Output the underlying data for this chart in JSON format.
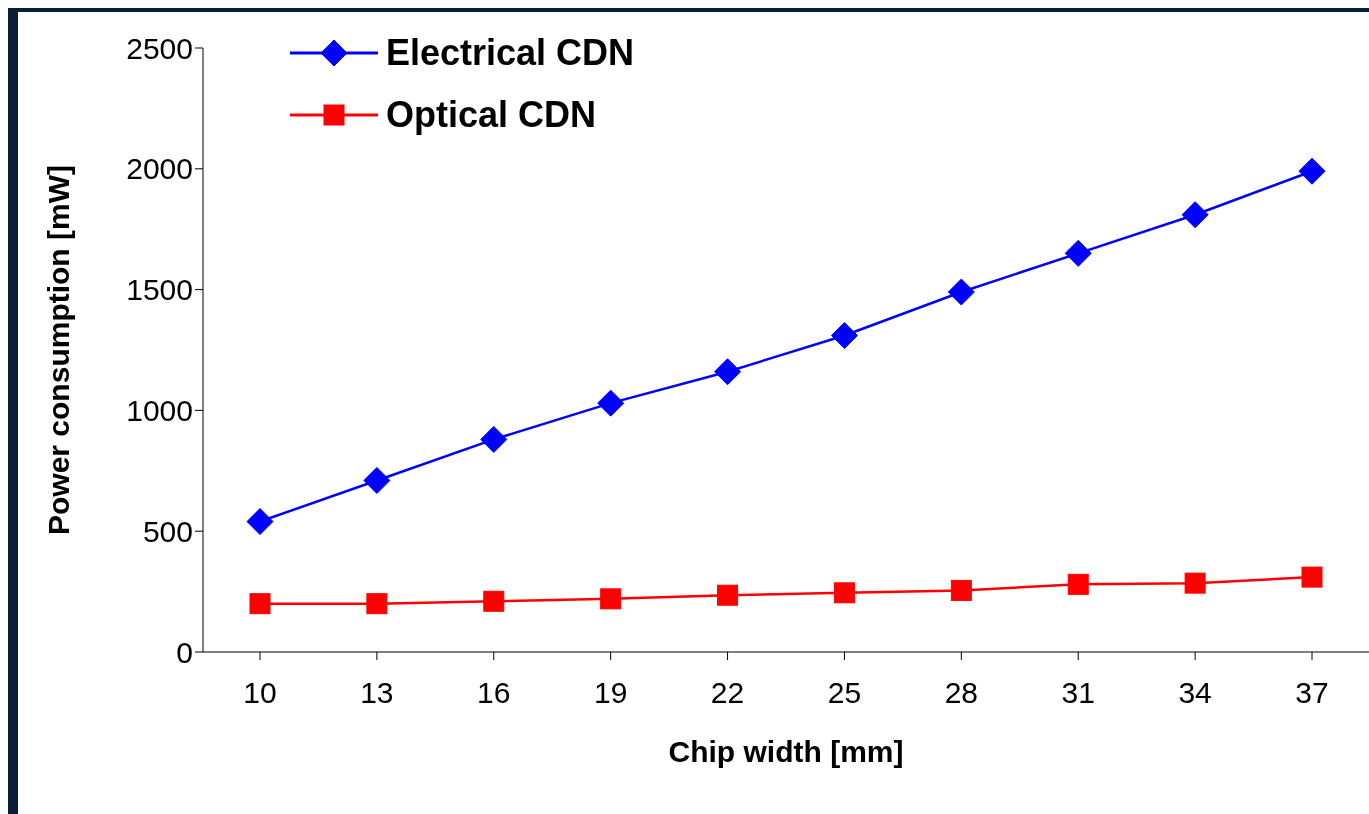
{
  "chart_data": {
    "type": "line",
    "xlabel": "Chip width [mm]",
    "ylabel": "Power consumption [mW]",
    "categories": [
      "10",
      "13",
      "16",
      "19",
      "22",
      "25",
      "28",
      "31",
      "34",
      "37"
    ],
    "series": [
      {
        "name": "Electrical CDN",
        "color": "#0000ff",
        "marker": "diamond",
        "values": [
          540,
          710,
          880,
          1030,
          1160,
          1310,
          1490,
          1650,
          1810,
          1990
        ]
      },
      {
        "name": "Optical CDN",
        "color": "#ff0000",
        "marker": "square",
        "values": [
          200,
          200,
          210,
          220,
          235,
          245,
          255,
          280,
          285,
          310
        ]
      }
    ],
    "ylim": [
      0,
      2500
    ],
    "yticks": [
      0,
      500,
      1000,
      1500,
      2000,
      2500
    ],
    "grid": false,
    "legend": "top left",
    "line_style": "solid"
  }
}
